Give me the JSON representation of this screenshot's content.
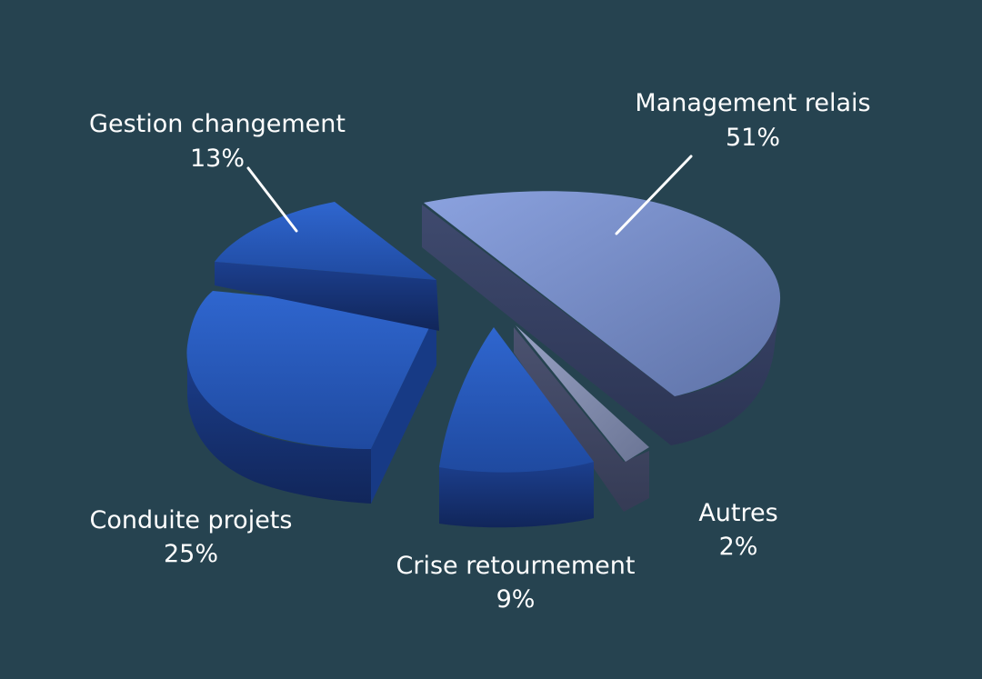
{
  "chart_data": {
    "type": "pie",
    "slices": [
      {
        "name": "Management relais",
        "percent_label": "51%",
        "value": 51
      },
      {
        "name": "Autres",
        "percent_label": "2%",
        "value": 2
      },
      {
        "name": "Crise retournement",
        "percent_label": "9%",
        "value": 9
      },
      {
        "name": "Conduite projets",
        "percent_label": "25%",
        "value": 25
      },
      {
        "name": "Gestion changement",
        "percent_label": "13%",
        "value": 13
      }
    ],
    "colors": {
      "background": "#264350",
      "management_relais": "#7f95d3",
      "autres": "#7b84a8",
      "blue_slices": "#2a5bb8"
    }
  }
}
